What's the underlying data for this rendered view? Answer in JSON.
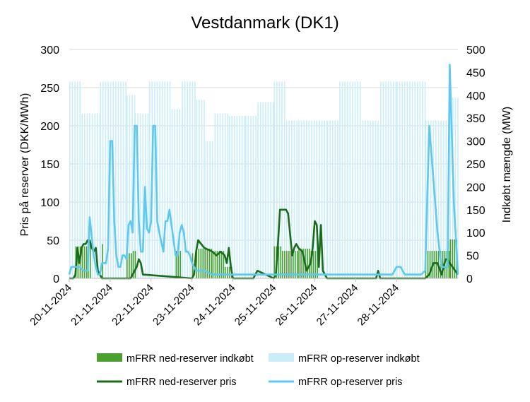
{
  "chart_data": {
    "type": "bar+line",
    "title": "Vestdanmark (DK1)",
    "ylabel_left": "Pris på reserver (DKK/MWh)",
    "ylabel_right": "Indkøbt mængde (MW)",
    "ylim_left": [
      0,
      300
    ],
    "ylim_right": [
      0,
      500
    ],
    "yticks_left": [
      "0",
      "50",
      "100",
      "150",
      "200",
      "250",
      "300"
    ],
    "yticks_right": [
      "0",
      "50",
      "100",
      "150",
      "200",
      "250",
      "300",
      "350",
      "400",
      "450",
      "500"
    ],
    "xlim_days": [
      0,
      9.5
    ],
    "xticks": [
      "20-11-2024",
      "21-11-2024",
      "22-11-2024",
      "23-11-2024",
      "24-11-2024",
      "25-11-2024",
      "26-11-2024",
      "27-11-2024",
      "28-11-2024"
    ],
    "grid": "horizontal",
    "legend_position": "bottom",
    "colors": {
      "down_bar": "#4aa02c",
      "up_bar": "#c9eef9",
      "down_line": "#1a6b1a",
      "up_line": "#5ec8ef"
    },
    "legend": [
      {
        "label": "mFRR ned-reserver indkøbt",
        "kind": "bar",
        "color": "#4aa02c"
      },
      {
        "label": "mFRR op-reserver indkøbt",
        "kind": "bar",
        "color": "#c9eef9"
      },
      {
        "label": "mFRR ned-reserver pris",
        "kind": "line",
        "color": "#1a6b1a"
      },
      {
        "label": "mFRR op-reserver pris",
        "kind": "line",
        "color": "#5ec8ef"
      }
    ],
    "series": [
      {
        "name": "mFRR op-reserver indkøbt",
        "axis": "right",
        "kind": "bar",
        "segments": [
          [
            0,
            0.3,
            430
          ],
          [
            0.3,
            0.75,
            360
          ],
          [
            0.75,
            1.4,
            430
          ],
          [
            1.4,
            1.6,
            400
          ],
          [
            1.6,
            1.95,
            360
          ],
          [
            1.95,
            2.5,
            430
          ],
          [
            2.5,
            2.75,
            370
          ],
          [
            2.75,
            3.1,
            430
          ],
          [
            3.1,
            3.3,
            390
          ],
          [
            3.3,
            3.55,
            300
          ],
          [
            3.55,
            3.9,
            360
          ],
          [
            3.9,
            4.3,
            355
          ],
          [
            4.3,
            4.6,
            355
          ],
          [
            4.6,
            5.0,
            385
          ],
          [
            5.0,
            5.3,
            430
          ],
          [
            5.3,
            5.6,
            345
          ],
          [
            5.6,
            6.1,
            345
          ],
          [
            6.1,
            6.3,
            345
          ],
          [
            6.3,
            6.6,
            345
          ],
          [
            6.6,
            7.1,
            430
          ],
          [
            7.1,
            7.6,
            345
          ],
          [
            7.6,
            8.0,
            430
          ],
          [
            8.0,
            8.7,
            430
          ],
          [
            8.7,
            9.3,
            345
          ],
          [
            9.3,
            9.5,
            395
          ]
        ]
      },
      {
        "name": "mFRR ned-reserver indkøbt",
        "axis": "right",
        "kind": "bar",
        "segments": [
          [
            0.15,
            0.45,
            70
          ],
          [
            0.45,
            0.55,
            80
          ],
          [
            0.8,
            0.85,
            75
          ],
          [
            1.4,
            1.55,
            55
          ],
          [
            1.55,
            1.65,
            60
          ],
          [
            2.6,
            2.75,
            60
          ],
          [
            3.0,
            3.05,
            55
          ],
          [
            3.1,
            3.5,
            65
          ],
          [
            3.5,
            3.8,
            60
          ],
          [
            3.8,
            4.0,
            25
          ],
          [
            5.0,
            5.2,
            70
          ],
          [
            5.2,
            5.6,
            60
          ],
          [
            5.6,
            5.9,
            65
          ],
          [
            5.9,
            6.1,
            60
          ],
          [
            8.7,
            9.3,
            60
          ],
          [
            9.3,
            9.5,
            85
          ]
        ]
      },
      {
        "name": "mFRR op-reserver pris",
        "axis": "left",
        "kind": "line",
        "x": [
          0,
          0.05,
          0.15,
          0.25,
          0.35,
          0.45,
          0.5,
          0.6,
          0.65,
          0.7,
          0.75,
          0.8,
          0.85,
          0.9,
          0.95,
          1.0,
          1.05,
          1.1,
          1.15,
          1.2,
          1.25,
          1.3,
          1.35,
          1.4,
          1.45,
          1.5,
          1.55,
          1.6,
          1.65,
          1.7,
          1.75,
          1.8,
          1.85,
          1.9,
          1.95,
          2.0,
          2.05,
          2.1,
          2.15,
          2.2,
          2.3,
          2.35,
          2.4,
          2.45,
          2.5,
          2.55,
          2.6,
          2.65,
          2.7,
          2.75,
          2.8,
          2.85,
          2.9,
          2.95,
          3.0,
          3.05,
          3.1,
          3.15,
          3.2,
          3.3,
          3.5,
          3.7,
          4.0,
          4.3,
          4.6,
          5.0,
          5.3,
          5.6,
          6.1,
          6.3,
          6.6,
          6.9,
          7.1,
          7.5,
          7.7,
          7.8,
          7.9,
          8.0,
          8.1,
          8.2,
          8.3,
          8.4,
          8.5,
          8.6,
          8.7,
          8.8,
          9.0,
          9.1,
          9.2,
          9.25,
          9.3,
          9.4,
          9.5
        ],
        "values": [
          5,
          15,
          15,
          15,
          10,
          10,
          80,
          30,
          15,
          5,
          5,
          20,
          20,
          20,
          40,
          180,
          180,
          75,
          30,
          15,
          15,
          30,
          30,
          25,
          70,
          75,
          60,
          200,
          200,
          75,
          35,
          35,
          120,
          65,
          60,
          75,
          200,
          200,
          75,
          60,
          35,
          75,
          75,
          90,
          70,
          50,
          30,
          30,
          60,
          70,
          60,
          35,
          35,
          30,
          20,
          15,
          10,
          10,
          10,
          10,
          5,
          5,
          5,
          5,
          5,
          5,
          5,
          5,
          5,
          5,
          5,
          5,
          5,
          5,
          5,
          5,
          5,
          15,
          15,
          5,
          5,
          5,
          5,
          5,
          10,
          200,
          60,
          15,
          15,
          15,
          280,
          100,
          5
        ]
      },
      {
        "name": "mFRR ned-reserver pris",
        "axis": "left",
        "kind": "line",
        "x": [
          0,
          0.1,
          0.15,
          0.2,
          0.25,
          0.3,
          0.35,
          0.4,
          0.45,
          0.5,
          0.55,
          0.6,
          0.65,
          0.7,
          0.75,
          0.8,
          1.5,
          1.55,
          1.6,
          1.65,
          1.7,
          1.75,
          1.8,
          3.0,
          3.05,
          3.1,
          3.15,
          3.3,
          3.5,
          3.6,
          3.7,
          3.8,
          3.85,
          3.9,
          3.95,
          4.0,
          4.5,
          4.6,
          5.0,
          5.05,
          5.1,
          5.15,
          5.2,
          5.3,
          5.35,
          5.45,
          5.5,
          5.55,
          5.6,
          5.7,
          5.8,
          5.9,
          5.95,
          6.0,
          6.05,
          6.1,
          6.15,
          6.2,
          6.3,
          7.5,
          7.55,
          7.6,
          8.7,
          8.8,
          8.9,
          9.0,
          9.1,
          9.2,
          9.25,
          9.3,
          9.5
        ],
        "values": [
          0,
          0,
          5,
          40,
          20,
          40,
          45,
          45,
          50,
          50,
          40,
          35,
          40,
          10,
          5,
          0,
          0,
          5,
          10,
          15,
          25,
          20,
          5,
          0,
          5,
          35,
          50,
          40,
          35,
          30,
          35,
          30,
          20,
          40,
          15,
          0,
          0,
          10,
          0,
          5,
          45,
          90,
          90,
          90,
          85,
          30,
          40,
          45,
          40,
          35,
          10,
          20,
          40,
          75,
          70,
          15,
          70,
          10,
          0,
          0,
          10,
          0,
          0,
          5,
          20,
          20,
          5,
          25,
          25,
          20,
          5
        ]
      }
    ]
  }
}
